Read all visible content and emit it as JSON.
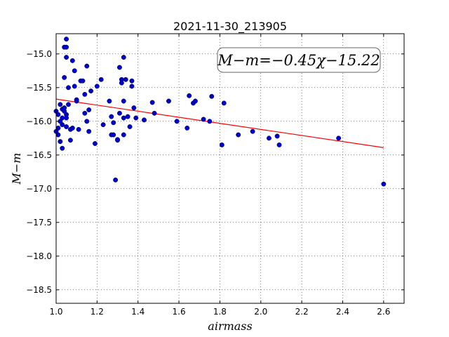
{
  "chart_data": {
    "type": "scatter",
    "title": "2021-11-30_213905",
    "xlabel": "airmass",
    "ylabel": "M−m",
    "xlim": [
      1.0,
      2.7
    ],
    "ylim": [
      -18.7,
      -14.7
    ],
    "y_inverted": true,
    "grid": true,
    "x_ticks": [
      1.0,
      1.2,
      1.4,
      1.6,
      1.8,
      2.0,
      2.2,
      2.4,
      2.6
    ],
    "x_tick_labels": [
      "1.0",
      "1.2",
      "1.4",
      "1.6",
      "1.8",
      "2.0",
      "2.2",
      "2.4",
      "2.6"
    ],
    "y_ticks": [
      -15.0,
      -15.5,
      -16.0,
      -16.5,
      -17.0,
      -17.5,
      -18.0,
      -18.5
    ],
    "y_tick_labels": [
      "−15.0",
      "−15.5",
      "−16.0",
      "−16.5",
      "−17.0",
      "−17.5",
      "−18.0",
      "−18.5"
    ],
    "annotation": "M−m=−0.45χ−15.22",
    "annotation_position": "top-right",
    "fit_line": {
      "slope": -0.45,
      "intercept": -15.22,
      "x_range": [
        1.0,
        2.6
      ],
      "color": "#ff0000"
    },
    "marker_color": "#0000cc",
    "points": [
      [
        1.0,
        -15.85
      ],
      [
        1.0,
        -16.15
      ],
      [
        1.01,
        -16.1
      ],
      [
        1.01,
        -16.2
      ],
      [
        1.01,
        -15.9
      ],
      [
        1.02,
        -16.0
      ],
      [
        1.02,
        -15.75
      ],
      [
        1.02,
        -16.3
      ],
      [
        1.03,
        -15.82
      ],
      [
        1.03,
        -15.95
      ],
      [
        1.03,
        -16.05
      ],
      [
        1.03,
        -16.4
      ],
      [
        1.04,
        -15.8
      ],
      [
        1.04,
        -15.85
      ],
      [
        1.04,
        -14.9
      ],
      [
        1.04,
        -15.35
      ],
      [
        1.05,
        -15.9
      ],
      [
        1.05,
        -15.95
      ],
      [
        1.05,
        -16.08
      ],
      [
        1.05,
        -14.9
      ],
      [
        1.05,
        -14.78
      ],
      [
        1.05,
        -15.05
      ],
      [
        1.06,
        -15.5
      ],
      [
        1.06,
        -15.75
      ],
      [
        1.07,
        -16.12
      ],
      [
        1.07,
        -16.28
      ],
      [
        1.08,
        -16.1
      ],
      [
        1.08,
        -15.1
      ],
      [
        1.09,
        -15.25
      ],
      [
        1.09,
        -15.48
      ],
      [
        1.1,
        -15.7
      ],
      [
        1.1,
        -15.68
      ],
      [
        1.11,
        -16.12
      ],
      [
        1.12,
        -15.4
      ],
      [
        1.13,
        -15.4
      ],
      [
        1.14,
        -15.6
      ],
      [
        1.14,
        -15.88
      ],
      [
        1.15,
        -16.0
      ],
      [
        1.15,
        -15.18
      ],
      [
        1.16,
        -16.15
      ],
      [
        1.16,
        -15.83
      ],
      [
        1.17,
        -15.55
      ],
      [
        1.19,
        -16.33
      ],
      [
        1.2,
        -15.48
      ],
      [
        1.22,
        -15.38
      ],
      [
        1.23,
        -16.05
      ],
      [
        1.26,
        -15.7
      ],
      [
        1.27,
        -15.93
      ],
      [
        1.27,
        -16.2
      ],
      [
        1.28,
        -16.02
      ],
      [
        1.28,
        -16.2
      ],
      [
        1.29,
        -16.87
      ],
      [
        1.3,
        -16.28
      ],
      [
        1.3,
        -16.27
      ],
      [
        1.31,
        -15.88
      ],
      [
        1.31,
        -15.2
      ],
      [
        1.32,
        -15.38
      ],
      [
        1.32,
        -15.43
      ],
      [
        1.33,
        -15.95
      ],
      [
        1.33,
        -15.7
      ],
      [
        1.33,
        -15.05
      ],
      [
        1.33,
        -16.2
      ],
      [
        1.34,
        -15.38
      ],
      [
        1.35,
        -15.93
      ],
      [
        1.36,
        -16.08
      ],
      [
        1.37,
        -15.4
      ],
      [
        1.37,
        -15.48
      ],
      [
        1.38,
        -15.8
      ],
      [
        1.39,
        -15.95
      ],
      [
        1.43,
        -15.98
      ],
      [
        1.47,
        -15.72
      ],
      [
        1.48,
        -15.88
      ],
      [
        1.55,
        -15.7
      ],
      [
        1.59,
        -16.0
      ],
      [
        1.64,
        -16.1
      ],
      [
        1.65,
        -15.62
      ],
      [
        1.67,
        -15.73
      ],
      [
        1.68,
        -15.7
      ],
      [
        1.72,
        -15.97
      ],
      [
        1.75,
        -16.0
      ],
      [
        1.76,
        -15.63
      ],
      [
        1.81,
        -16.35
      ],
      [
        1.82,
        -15.73
      ],
      [
        1.89,
        -16.2
      ],
      [
        1.96,
        -16.15
      ],
      [
        2.04,
        -16.25
      ],
      [
        2.08,
        -16.22
      ],
      [
        2.09,
        -16.35
      ],
      [
        2.38,
        -16.25
      ],
      [
        2.6,
        -16.93
      ]
    ]
  }
}
